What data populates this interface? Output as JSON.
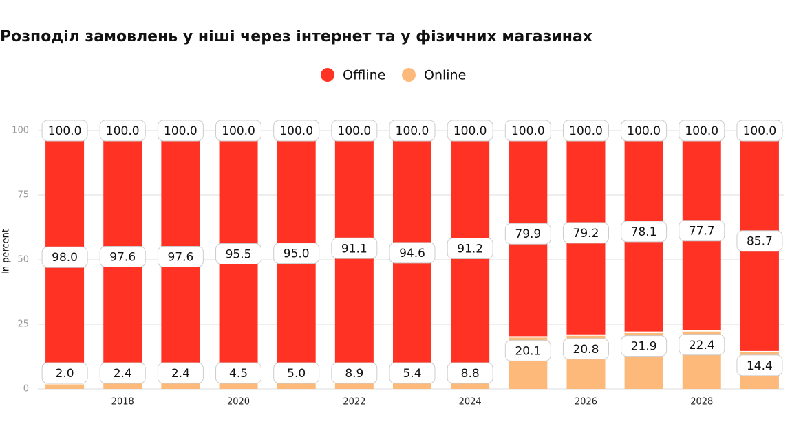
{
  "chart_data": {
    "type": "stacked_bar",
    "title": "Розподіл замовлень у ніші через інтернет та у фізичних магазинах",
    "y_label": "In percent",
    "categories": [
      null,
      "2018",
      null,
      "2020",
      null,
      "2022",
      null,
      "2024",
      null,
      "2026",
      null,
      "2028",
      null
    ],
    "series": [
      {
        "name": "Offline",
        "color": "#ff3223",
        "values": [
          98.0,
          97.6,
          97.6,
          95.5,
          95.0,
          91.1,
          94.6,
          91.2,
          79.9,
          79.2,
          78.1,
          77.7,
          85.7
        ],
        "value_labels": [
          "98.0",
          "97.6",
          "97.6",
          "95.5",
          "95.0",
          "91.1",
          "94.6",
          "91.2",
          "79.9",
          "79.2",
          "78.1",
          "77.7",
          "85.7"
        ]
      },
      {
        "name": "Online",
        "color": "#fdb97a",
        "values": [
          2.0,
          2.4,
          2.4,
          4.5,
          5.0,
          8.9,
          5.4,
          8.8,
          20.1,
          20.8,
          21.9,
          22.4,
          14.4
        ],
        "value_labels": [
          "2.0",
          "2.4",
          "2.4",
          "4.5",
          "5.0",
          "8.9",
          "5.4",
          "8.8",
          "20.1",
          "20.8",
          "21.9",
          "22.4",
          "14.4"
        ]
      }
    ],
    "totals": {
      "values": [
        100.0,
        100.0,
        100.0,
        100.0,
        100.0,
        100.0,
        100.0,
        100.0,
        100.0,
        100.0,
        100.0,
        100.0,
        100.0
      ],
      "value_labels": [
        "100.0",
        "100.0",
        "100.0",
        "100.0",
        "100.0",
        "100.0",
        "100.0",
        "100.0",
        "100.0",
        "100.0",
        "100.0",
        "100.0",
        "100.0"
      ]
    },
    "ylim": [
      0,
      100
    ],
    "yticks": [
      0,
      25,
      50,
      75,
      100
    ],
    "grid": true
  }
}
